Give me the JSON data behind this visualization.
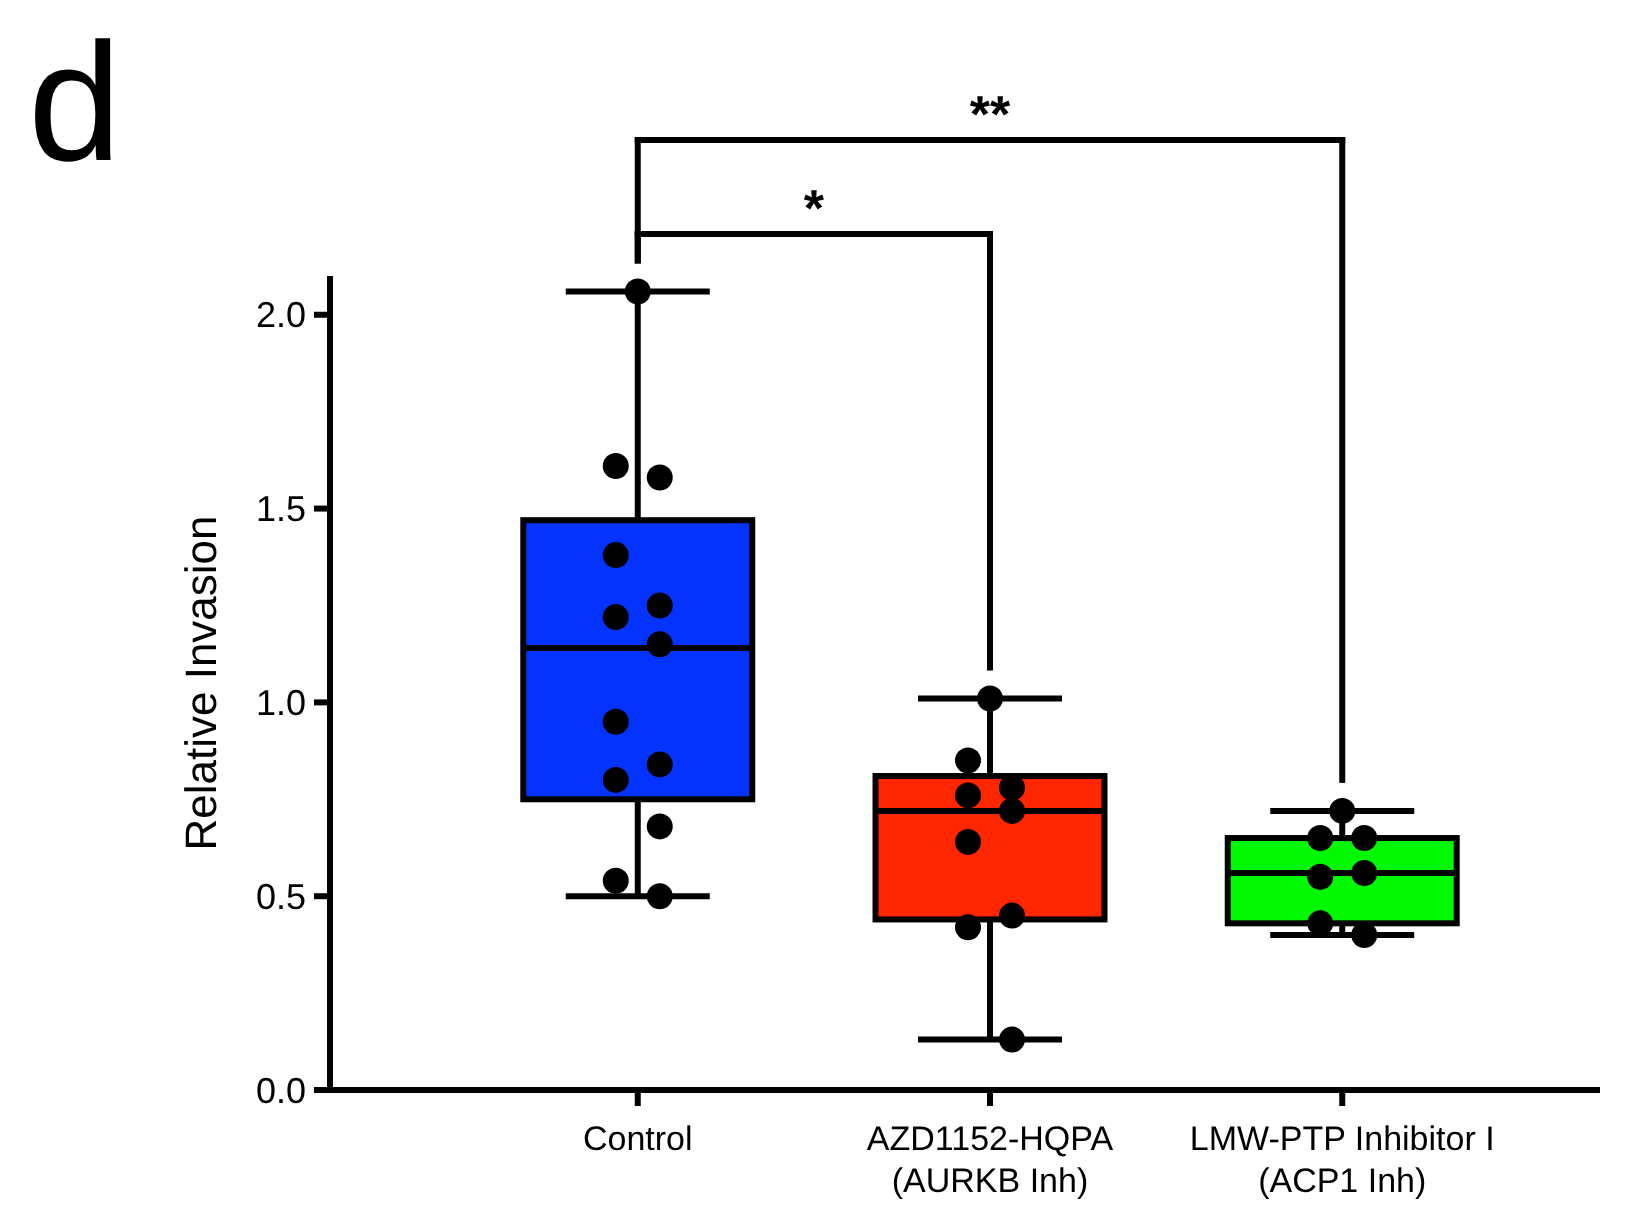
{
  "chart_data": {
    "type": "box",
    "ylabel": "Relative Invasion",
    "categories": [
      "Control",
      "AZD1152-HQPA\n(AURKB Inh)",
      "LMW-PTP Inhibitor I\n(ACP1 Inh)"
    ],
    "colors": [
      "#0433ff",
      "#ff2600",
      "#00f900"
    ],
    "boxes": [
      {
        "low": 0.5,
        "q1": 0.75,
        "median": 1.14,
        "q3": 1.47,
        "high": 2.06
      },
      {
        "low": 0.13,
        "q1": 0.44,
        "median": 0.72,
        "q3": 0.81,
        "high": 1.01
      },
      {
        "low": 0.4,
        "q1": 0.43,
        "median": 0.56,
        "q3": 0.65,
        "high": 0.72
      }
    ],
    "series": [
      {
        "type": "scatter",
        "color": "#000000",
        "marker": "circle",
        "x": [
          "Control",
          "Control",
          "Control",
          "Control",
          "Control",
          "Control",
          "Control",
          "Control",
          "Control",
          "Control",
          "Control",
          "Control",
          "Control",
          "AZD1152-HQPA\n(AURKB Inh)",
          "AZD1152-HQPA\n(AURKB Inh)",
          "AZD1152-HQPA\n(AURKB Inh)",
          "AZD1152-HQPA\n(AURKB Inh)",
          "AZD1152-HQPA\n(AURKB Inh)",
          "AZD1152-HQPA\n(AURKB Inh)",
          "AZD1152-HQPA\n(AURKB Inh)",
          "AZD1152-HQPA\n(AURKB Inh)",
          "AZD1152-HQPA\n(AURKB Inh)",
          "LMW-PTP Inhibitor I\n(ACP1 Inh)",
          "LMW-PTP Inhibitor I\n(ACP1 Inh)",
          "LMW-PTP Inhibitor I\n(ACP1 Inh)",
          "LMW-PTP Inhibitor I\n(ACP1 Inh)",
          "LMW-PTP Inhibitor I\n(ACP1 Inh)",
          "LMW-PTP Inhibitor I\n(ACP1 Inh)",
          "LMW-PTP Inhibitor I\n(ACP1 Inh)"
        ],
        "values": [
          2.06,
          1.61,
          1.58,
          1.38,
          1.25,
          1.22,
          1.15,
          0.95,
          0.84,
          0.8,
          0.68,
          0.54,
          0.5,
          1.01,
          0.85,
          0.78,
          0.76,
          0.72,
          0.64,
          0.45,
          0.42,
          0.13,
          0.72,
          0.65,
          0.65,
          0.55,
          0.56,
          0.43,
          0.4
        ]
      }
    ],
    "ylim": [
      0,
      2.1
    ],
    "yticks": [
      {
        "value": 0,
        "label": "0.0"
      },
      {
        "value": 0.5,
        "label": "0.5"
      },
      {
        "value": 1,
        "label": "1.0"
      },
      {
        "value": 1.5,
        "label": "1.5"
      },
      {
        "value": 2,
        "label": "2.0"
      }
    ],
    "grid": false,
    "annotations": [
      "d",
      "*",
      "**"
    ]
  }
}
